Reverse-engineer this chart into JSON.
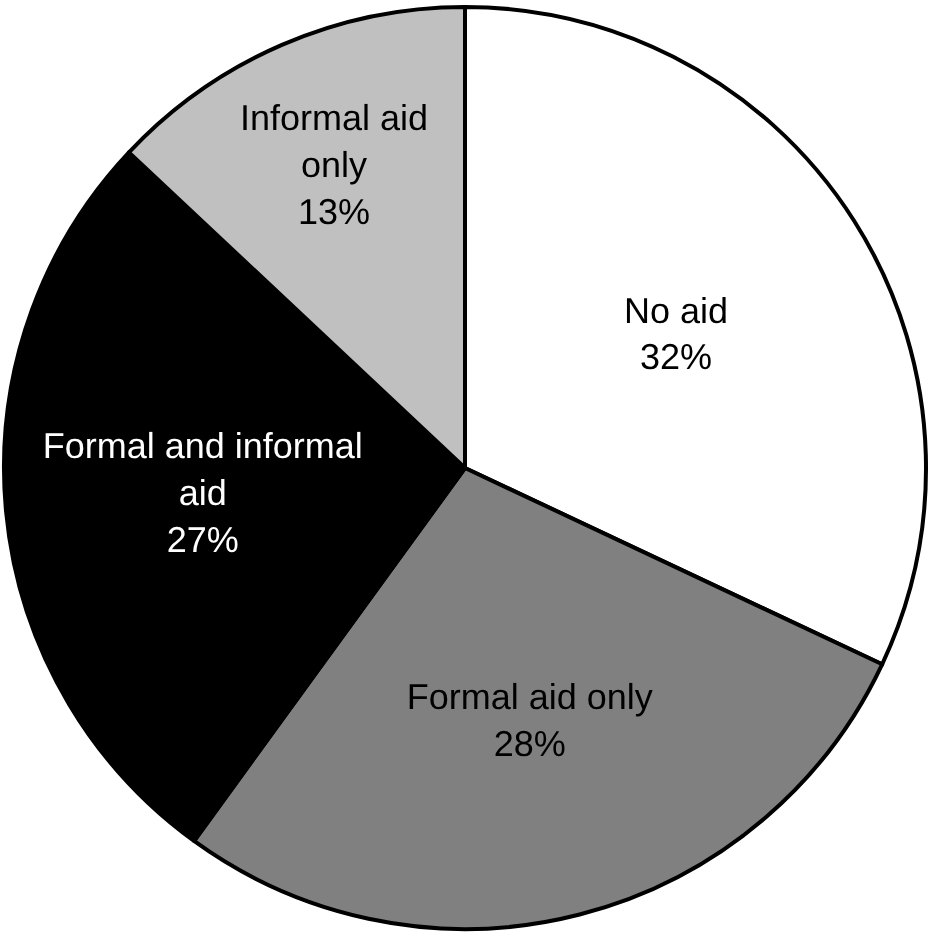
{
  "chart_data": {
    "type": "pie",
    "categories": [
      "No aid",
      "Formal aid only",
      "Formal and informal\naid",
      "Informal aid\nonly"
    ],
    "values": [
      32,
      28,
      27,
      13
    ],
    "value_labels": [
      "32%",
      "28%",
      "27%",
      "13%"
    ],
    "colors": [
      "#ffffff",
      "#808080",
      "#000000",
      "#c0c0c0"
    ],
    "legend": false
  }
}
